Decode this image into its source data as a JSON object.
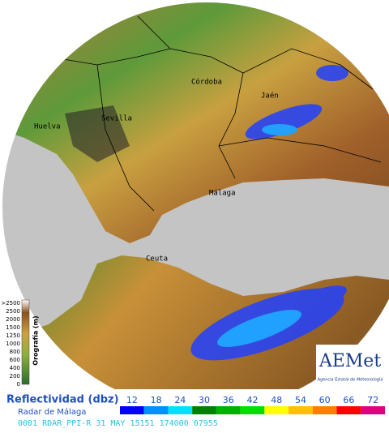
{
  "copyright": "© Agencia Estatal de Meteorología",
  "cities": [
    "Córdoba",
    "Jaén",
    "Sevilla",
    "Huelva",
    "Málaga",
    "Ceuta"
  ],
  "orography": {
    "title": "Orografía (m)",
    "levels": [
      ">2500",
      "2500",
      "2000",
      "1500",
      "1250",
      "1000",
      "800",
      "600",
      "400",
      "200",
      "0"
    ]
  },
  "logo": {
    "name": "AEMet",
    "subtitle": "Agencia Estatal de Meteorología"
  },
  "legend": {
    "title": "Reflectividad (dbz)",
    "radar": "Radar de Málaga",
    "levels": [
      12,
      18,
      24,
      30,
      36,
      42,
      48,
      54,
      60,
      66,
      72
    ],
    "colors": [
      "#0000ff",
      "#0090ff",
      "#00e0ff",
      "#008000",
      "#00b000",
      "#00e000",
      "#ffff00",
      "#ffc000",
      "#ff8000",
      "#ff0000",
      "#e00080"
    ]
  },
  "status": "0001 RDAR_PPI-R  31 MAY 15151 174000 07955"
}
